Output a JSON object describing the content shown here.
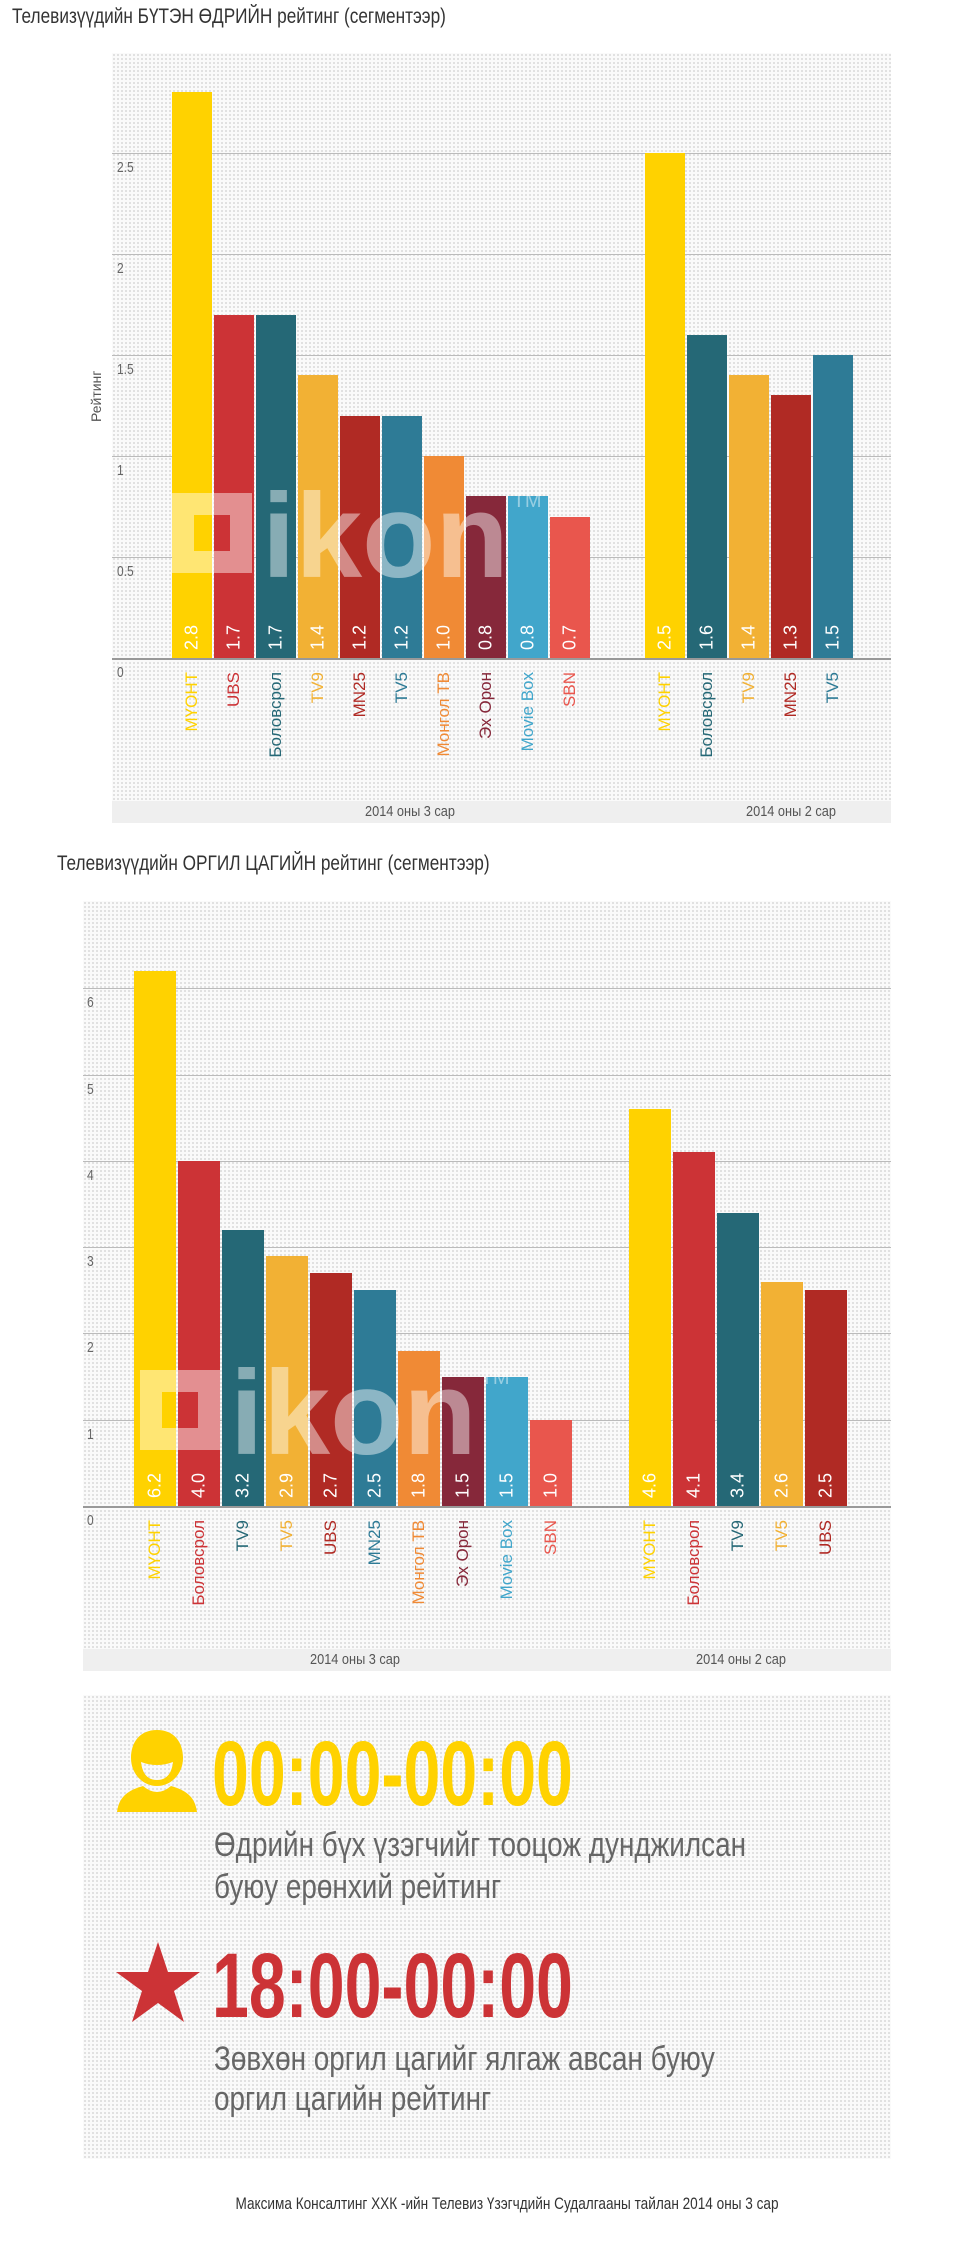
{
  "chart_data": [
    {
      "type": "bar",
      "title": "Телевизүүдийн БҮТЭН ӨДРИЙН рейтинг (сегментээр)",
      "ylabel": "Рейтинг",
      "ylim": [
        0,
        3
      ],
      "yticks": [
        "0",
        "0.5",
        "1",
        "1.5",
        "2",
        "2.5"
      ],
      "ytick_values": [
        0,
        0.5,
        1,
        1.5,
        2,
        2.5
      ],
      "groups": [
        {
          "name": "2014 оны 3 сар",
          "categories": [
            "МҮОНТ",
            "UBS",
            "Боловсрол",
            "TV9",
            "MN25",
            "TV5",
            "Монгол ТВ",
            "Эх Орон",
            "Movie Box",
            "SBN"
          ],
          "values": [
            2.8,
            1.7,
            1.7,
            1.4,
            1.2,
            1.2,
            1.0,
            0.8,
            0.8,
            0.7
          ],
          "labels": [
            "2.8",
            "1.7",
            "1.7",
            "1.4",
            "1.2",
            "1.2",
            "1.0",
            "0.8",
            "0.8",
            "0.7"
          ],
          "colors": [
            "#ffd200",
            "#cc3336",
            "#256876",
            "#f2b134",
            "#b02a24",
            "#2e7b96",
            "#f08a35",
            "#86283a",
            "#41a6cb",
            "#e9564d"
          ]
        },
        {
          "name": "2014 оны 2 сар",
          "categories": [
            "МҮОНТ",
            "Боловсрол",
            "TV9",
            "MN25",
            "TV5"
          ],
          "values": [
            2.5,
            1.6,
            1.4,
            1.3,
            1.5
          ],
          "labels": [
            "2.5",
            "1.6",
            "1.4",
            "1.3",
            "1.5"
          ],
          "colors": [
            "#ffd200",
            "#256876",
            "#f2b134",
            "#b02a24",
            "#2e7b96"
          ]
        }
      ]
    },
    {
      "type": "bar",
      "title": "Телевизүүдийн ОРГИЛ ЦАГИЙН рейтинг (сегментээр)",
      "ylabel": "",
      "ylim": [
        0,
        7
      ],
      "yticks": [
        "0",
        "1",
        "2",
        "3",
        "4",
        "5",
        "6"
      ],
      "ytick_values": [
        0,
        1,
        2,
        3,
        4,
        5,
        6
      ],
      "groups": [
        {
          "name": "2014 оны 3 сар",
          "categories": [
            "МҮОНТ",
            "Боловсрол",
            "TV9",
            "TV5",
            "UBS",
            "MN25",
            "Монгол ТВ",
            "Эх Орон",
            "Movie Box",
            "SBN"
          ],
          "values": [
            6.2,
            4.0,
            3.2,
            2.9,
            2.7,
            2.5,
            1.8,
            1.5,
            1.5,
            1.0
          ],
          "labels": [
            "6.2",
            "4.0",
            "3.2",
            "2.9",
            "2.7",
            "2.5",
            "1.8",
            "1.5",
            "1.5",
            "1.0"
          ],
          "colors": [
            "#ffd200",
            "#cc3336",
            "#256876",
            "#f2b134",
            "#b02a24",
            "#2e7b96",
            "#f08a35",
            "#86283a",
            "#41a6cb",
            "#e9564d"
          ]
        },
        {
          "name": "2014 оны 2 сар",
          "categories": [
            "МҮОНТ",
            "Боловсрол",
            "TV9",
            "TV5",
            "UBS"
          ],
          "values": [
            4.6,
            4.1,
            3.4,
            2.6,
            2.5
          ],
          "labels": [
            "4.6",
            "4.1",
            "3.4",
            "2.6",
            "2.5"
          ],
          "colors": [
            "#ffd200",
            "#cc3336",
            "#256876",
            "#f2b134",
            "#b02a24"
          ]
        }
      ]
    }
  ],
  "watermark": "ikon",
  "watermark_tm": "TM",
  "legend": {
    "day": {
      "time": "00:00-00:00",
      "desc1": "Өдрийн бүх үзэгчийг тооцож дунджилсан",
      "desc2": "буюу ерөнхий рейтинг",
      "color": "#ffd200"
    },
    "peak": {
      "time": "18:00-00:00",
      "desc1": "Зөвхөн оргил цагийг ялгаж авсан буюу",
      "desc2": "оргил цагийн рейтинг",
      "color": "#cc3336"
    }
  },
  "footer": "Максима Консалтинг ХХК -ийн Телевиз Үзэгчдийн Судалгааны тайлан 2014 оны 3 сар"
}
